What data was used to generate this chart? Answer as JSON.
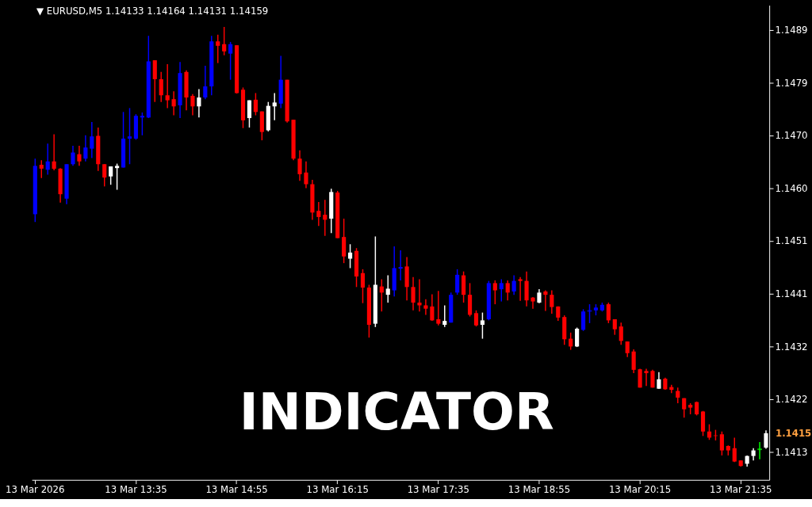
{
  "chart_data": {
    "type": "candlestick",
    "title": "▼ EURUSD,M5  1.14133 1.14164 1.14131 1.14159",
    "annotations": [
      "1.1415",
      "INDICATOR"
    ],
    "categories": [
      "13 Mar 2026",
      null,
      null,
      null,
      null,
      null,
      null,
      null,
      null,
      null,
      null,
      null,
      null,
      null,
      null,
      null,
      "13 Mar 13:35",
      null,
      null,
      null,
      null,
      null,
      null,
      null,
      null,
      null,
      null,
      null,
      null,
      null,
      null,
      null,
      "13 Mar 14:55",
      null,
      null,
      null,
      null,
      null,
      null,
      null,
      null,
      null,
      null,
      null,
      null,
      null,
      null,
      null,
      "13 Mar 16:15",
      null,
      null,
      null,
      null,
      null,
      null,
      null,
      null,
      null,
      null,
      null,
      null,
      null,
      null,
      null,
      "13 Mar 17:35",
      null,
      null,
      null,
      null,
      null,
      null,
      null,
      null,
      null,
      null,
      null,
      null,
      null,
      null,
      null,
      "13 Mar 18:55",
      null,
      null,
      null,
      null,
      null,
      null,
      null,
      null,
      null,
      null,
      null,
      null,
      null,
      null,
      null,
      "13 Mar 20:15",
      null,
      null,
      null,
      null,
      null,
      null,
      null,
      null,
      null,
      null,
      null,
      null,
      null,
      null,
      null,
      "13 Mar 21:35",
      null,
      null,
      null,
      null
    ],
    "ohlc": [
      [
        1.14553,
        1.14653,
        1.14539,
        1.1464
      ],
      [
        1.14642,
        1.1465,
        1.14618,
        1.14635
      ],
      [
        1.14633,
        1.1468,
        1.14624,
        1.14648
      ],
      [
        1.14648,
        1.14697,
        1.14632,
        1.14635
      ],
      [
        1.14635,
        1.14636,
        1.14574,
        1.14589
      ],
      [
        1.14581,
        1.14643,
        1.14571,
        1.14643
      ],
      [
        1.14643,
        1.14676,
        1.1464,
        1.14664
      ],
      [
        1.14661,
        1.14676,
        1.1464,
        1.14648
      ],
      [
        1.14653,
        1.14695,
        1.14648,
        1.14673
      ],
      [
        1.14671,
        1.14719,
        1.14654,
        1.14693
      ],
      [
        1.14694,
        1.14709,
        1.14631,
        1.14643
      ],
      [
        1.14643,
        1.14643,
        1.14603,
        1.14619
      ],
      [
        1.14621,
        1.14639,
        1.14606,
        1.14639
      ],
      [
        1.14636,
        1.14644,
        1.14597,
        1.1464
      ],
      [
        1.14637,
        1.14737,
        1.14637,
        1.14689
      ],
      [
        1.14689,
        1.14744,
        1.14643,
        1.14693
      ],
      [
        1.14689,
        1.14733,
        1.14687,
        1.1473
      ],
      [
        1.14727,
        1.14736,
        1.14695,
        1.1473
      ],
      [
        1.14727,
        1.14874,
        1.14726,
        1.14828
      ],
      [
        1.1483,
        1.1483,
        1.14755,
        1.14796
      ],
      [
        1.14796,
        1.14809,
        1.14755,
        1.14767
      ],
      [
        1.14767,
        1.14823,
        1.14744,
        1.14758
      ],
      [
        1.1476,
        1.14774,
        1.14731,
        1.14747
      ],
      [
        1.14749,
        1.14827,
        1.14726,
        1.14807
      ],
      [
        1.14809,
        1.14812,
        1.1474,
        1.14763
      ],
      [
        1.14766,
        1.14769,
        1.14731,
        1.14747
      ],
      [
        1.14747,
        1.14778,
        1.14727,
        1.14763
      ],
      [
        1.14763,
        1.1482,
        1.1476,
        1.14783
      ],
      [
        1.14783,
        1.14874,
        1.14767,
        1.14864
      ],
      [
        1.14864,
        1.14876,
        1.14825,
        1.14856
      ],
      [
        1.14859,
        1.1489,
        1.14839,
        1.14846
      ],
      [
        1.14842,
        1.14863,
        1.14795,
        1.14859
      ],
      [
        1.14857,
        1.14857,
        1.1477,
        1.14771
      ],
      [
        1.14777,
        1.14781,
        1.14708,
        1.14722
      ],
      [
        1.14726,
        1.14758,
        1.14709,
        1.14758
      ],
      [
        1.14759,
        1.14771,
        1.14731,
        1.14737
      ],
      [
        1.14738,
        1.14738,
        1.14686,
        1.14701
      ],
      [
        1.14704,
        1.14755,
        1.14702,
        1.14748
      ],
      [
        1.14747,
        1.14771,
        1.14722,
        1.14754
      ],
      [
        1.14752,
        1.14838,
        1.14744,
        1.14795
      ],
      [
        1.14795,
        1.14795,
        1.14718,
        1.1472
      ],
      [
        1.14723,
        1.14723,
        1.1465,
        1.14653
      ],
      [
        1.14653,
        1.14668,
        1.14613,
        1.14625
      ],
      [
        1.14628,
        1.14648,
        1.146,
        1.14607
      ],
      [
        1.14607,
        1.14615,
        1.14543,
        1.14556
      ],
      [
        1.14559,
        1.14575,
        1.14532,
        1.14548
      ],
      [
        1.14552,
        1.14579,
        1.14514,
        1.14543
      ],
      [
        1.14545,
        1.14599,
        1.14519,
        1.14593
      ],
      [
        1.14592,
        1.14595,
        1.1451,
        1.1451
      ],
      [
        1.14512,
        1.14545,
        1.14465,
        1.14477
      ],
      [
        1.14473,
        1.14499,
        1.14456,
        1.14484
      ],
      [
        1.14487,
        1.14492,
        1.14422,
        1.14441
      ],
      [
        1.14447,
        1.14454,
        1.14393,
        1.14421
      ],
      [
        1.14421,
        1.14426,
        1.14331,
        1.14354
      ],
      [
        1.14356,
        1.14513,
        1.1435,
        1.14426
      ],
      [
        1.14423,
        1.14436,
        1.14378,
        1.14412
      ],
      [
        1.14408,
        1.14443,
        1.14394,
        1.14419
      ],
      [
        1.14416,
        1.14495,
        1.14405,
        1.14456
      ],
      [
        1.14455,
        1.14488,
        1.14434,
        1.14458
      ],
      [
        1.14459,
        1.14476,
        1.14398,
        1.14422
      ],
      [
        1.14422,
        1.1444,
        1.1438,
        1.14394
      ],
      [
        1.14394,
        1.14436,
        1.14378,
        1.14389
      ],
      [
        1.14389,
        1.144,
        1.14372,
        1.14383
      ],
      [
        1.14387,
        1.14409,
        1.14361,
        1.14362
      ],
      [
        1.14364,
        1.14415,
        1.14353,
        1.14356
      ],
      [
        1.14354,
        1.14389,
        1.1435,
        1.14361
      ],
      [
        1.14358,
        1.14412,
        1.14358,
        1.14408
      ],
      [
        1.14412,
        1.14454,
        1.14408,
        1.14444
      ],
      [
        1.14443,
        1.1445,
        1.14394,
        1.14408
      ],
      [
        1.14408,
        1.14429,
        1.14369,
        1.14372
      ],
      [
        1.14375,
        1.1438,
        1.14351,
        1.14353
      ],
      [
        1.14354,
        1.14376,
        1.14329,
        1.14362
      ],
      [
        1.14364,
        1.14433,
        1.14362,
        1.14429
      ],
      [
        1.14429,
        1.14434,
        1.14391,
        1.14416
      ],
      [
        1.14418,
        1.14436,
        1.14396,
        1.14429
      ],
      [
        1.14429,
        1.14434,
        1.14398,
        1.14412
      ],
      [
        1.14414,
        1.14443,
        1.14408,
        1.14433
      ],
      [
        1.14436,
        1.1444,
        1.14397,
        1.14433
      ],
      [
        1.14433,
        1.1445,
        1.14387,
        1.14398
      ],
      [
        1.14403,
        1.14404,
        1.14383,
        1.14396
      ],
      [
        1.14394,
        1.14418,
        1.14393,
        1.14412
      ],
      [
        1.14414,
        1.14416,
        1.14379,
        1.14408
      ],
      [
        1.14408,
        1.14416,
        1.14374,
        1.14386
      ],
      [
        1.14387,
        1.14387,
        1.14361,
        1.14367
      ],
      [
        1.14368,
        1.14371,
        1.14318,
        1.14328
      ],
      [
        1.14329,
        1.1434,
        1.14309,
        1.14315
      ],
      [
        1.14315,
        1.14349,
        1.14314,
        1.14347
      ],
      [
        1.14345,
        1.14382,
        1.14343,
        1.14378
      ],
      [
        1.14379,
        1.14391,
        1.14357,
        1.14379
      ],
      [
        1.1438,
        1.14391,
        1.14371,
        1.14385
      ],
      [
        1.1438,
        1.14394,
        1.14378,
        1.1439
      ],
      [
        1.14391,
        1.14394,
        1.14357,
        1.14362
      ],
      [
        1.14364,
        1.14364,
        1.14336,
        1.14346
      ],
      [
        1.14351,
        1.14358,
        1.14318,
        1.14325
      ],
      [
        1.14324,
        1.14324,
        1.14296,
        1.14303
      ],
      [
        1.14306,
        1.1431,
        1.14267,
        1.14273
      ],
      [
        1.14274,
        1.14275,
        1.14241,
        1.14241
      ],
      [
        1.14271,
        1.14275,
        1.14244,
        1.14267
      ],
      [
        1.14271,
        1.14273,
        1.14241,
        1.14241
      ],
      [
        1.14239,
        1.14269,
        1.14239,
        1.14256
      ],
      [
        1.14257,
        1.14259,
        1.14237,
        1.14238
      ],
      [
        1.14242,
        1.14246,
        1.14231,
        1.14237
      ],
      [
        1.14235,
        1.14241,
        1.14213,
        1.14223
      ],
      [
        1.14222,
        1.14222,
        1.14187,
        1.14202
      ],
      [
        1.1421,
        1.14213,
        1.14193,
        1.14205
      ],
      [
        1.14215,
        1.14216,
        1.14191,
        1.14193
      ],
      [
        1.14198,
        1.14199,
        1.14154,
        1.14162
      ],
      [
        1.14162,
        1.14175,
        1.14147,
        1.14151
      ],
      [
        1.14155,
        1.14165,
        1.14146,
        1.14154
      ],
      [
        1.14157,
        1.14162,
        1.14119,
        1.14128
      ],
      [
        1.14136,
        1.14137,
        1.14119,
        1.14128
      ],
      [
        1.14132,
        1.14151,
        1.14107,
        1.14108
      ],
      [
        1.1411,
        1.1411,
        1.14099,
        1.141
      ],
      [
        1.14104,
        1.14119,
        1.14099,
        1.14118
      ],
      [
        1.14118,
        1.14132,
        1.1411,
        1.14128
      ],
      [
        1.1413,
        1.14143,
        1.14112,
        1.1413
      ],
      [
        1.14133,
        1.14164,
        1.14131,
        1.14159
      ]
    ],
    "colors": [
      "#0000ff",
      "#ff0000",
      "#0000ff",
      "#ff0000",
      "#ff0000",
      "#0000ff",
      "#0000ff",
      "#ff0000",
      "#0000ff",
      "#0000ff",
      "#ff0000",
      "#ff0000",
      "#ffffff",
      "#ffffff",
      "#0000ff",
      "#0000ff",
      "#0000ff",
      "#0000ff",
      "#0000ff",
      "#ff0000",
      "#ff0000",
      "#ff0000",
      "#ff0000",
      "#0000ff",
      "#ff0000",
      "#ff0000",
      "#ffffff",
      "#0000ff",
      "#0000ff",
      "#ff0000",
      "#ff0000",
      "#0000ff",
      "#ff0000",
      "#ff0000",
      "#ffffff",
      "#ff0000",
      "#ff0000",
      "#ffffff",
      "#ffffff",
      "#0000ff",
      "#ff0000",
      "#ff0000",
      "#ff0000",
      "#ff0000",
      "#ff0000",
      "#ff0000",
      "#ff0000",
      "#ffffff",
      "#ff0000",
      "#ff0000",
      "#ffffff",
      "#ff0000",
      "#ff0000",
      "#ff0000",
      "#ffffff",
      "#ff0000",
      "#ffffff",
      "#0000ff",
      "#0000ff",
      "#ff0000",
      "#ff0000",
      "#ff0000",
      "#ff0000",
      "#ff0000",
      "#ff0000",
      "#ffffff",
      "#0000ff",
      "#0000ff",
      "#ff0000",
      "#ff0000",
      "#ff0000",
      "#ffffff",
      "#0000ff",
      "#ff0000",
      "#0000ff",
      "#ff0000",
      "#0000ff",
      "#ff0000",
      "#ff0000",
      "#ff0000",
      "#ffffff",
      "#ff0000",
      "#ff0000",
      "#ff0000",
      "#ff0000",
      "#ff0000",
      "#ffffff",
      "#0000ff",
      "#0000ff",
      "#0000ff",
      "#0000ff",
      "#ff0000",
      "#ff0000",
      "#ff0000",
      "#ff0000",
      "#ff0000",
      "#ff0000",
      "#ff0000",
      "#ff0000",
      "#ffffff",
      "#ff0000",
      "#ff0000",
      "#ff0000",
      "#ff0000",
      "#ff0000",
      "#ff0000",
      "#ff0000",
      "#ff0000",
      "#ff0000",
      "#ff0000",
      "#ff0000",
      "#ff0000",
      "#ff0000",
      "#ffffff",
      "#ffffff",
      "#00ff00",
      "#ffffff"
    ],
    "ylim": [
      1.14075,
      1.14929
    ],
    "yticks": [
      {
        "value": 1.14125,
        "label": "1.1413"
      },
      {
        "value": 1.1422,
        "label": "1.1422"
      },
      {
        "value": 1.14315,
        "label": "1.1432"
      },
      {
        "value": 1.1441,
        "label": "1.1441"
      },
      {
        "value": 1.14505,
        "label": "1.1451"
      },
      {
        "value": 1.146,
        "label": "1.1460"
      },
      {
        "value": 1.14695,
        "label": "1.1470"
      },
      {
        "value": 1.1479,
        "label": "1.1479"
      },
      {
        "value": 1.14885,
        "label": "1.1489"
      }
    ]
  }
}
